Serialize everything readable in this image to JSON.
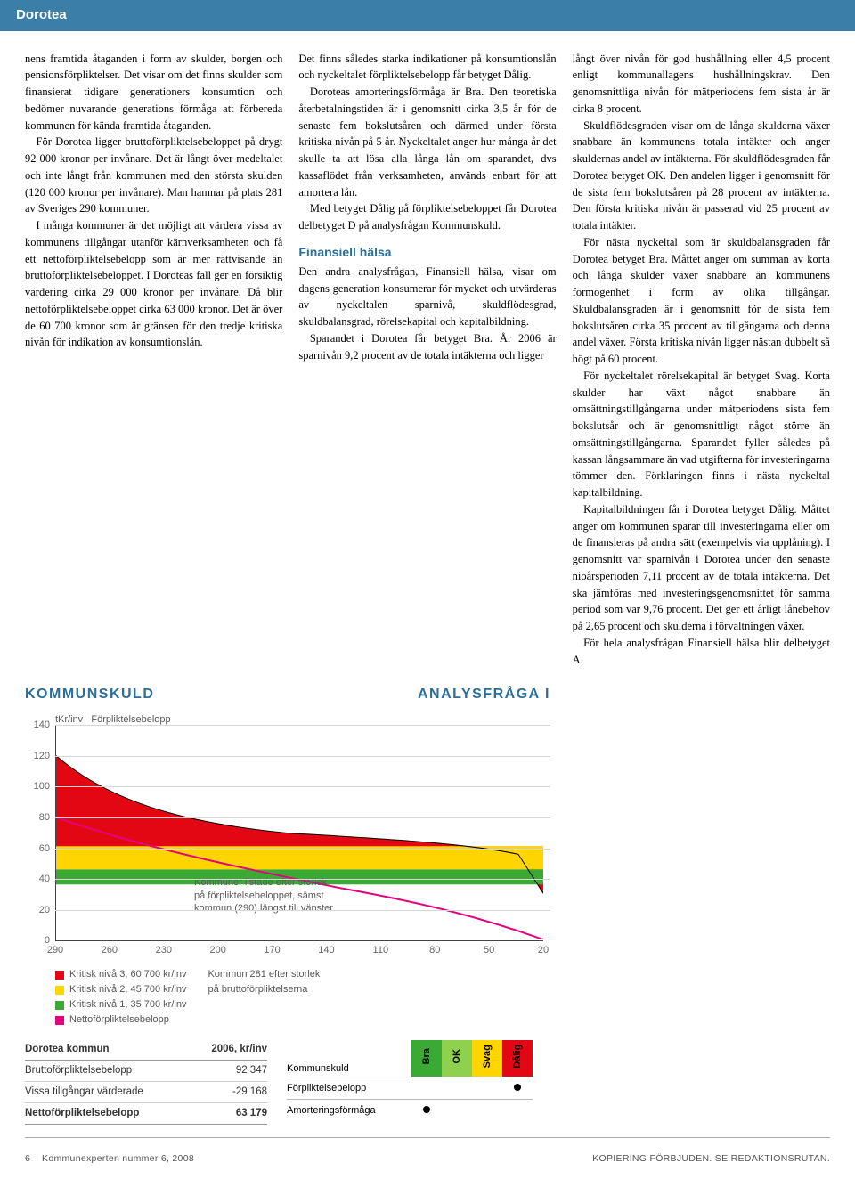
{
  "header": {
    "title": "Dorotea"
  },
  "col1": {
    "p1": "nens framtida åtaganden i form av skulder, borgen och pensionsförpliktelser. Det visar om det finns skulder som finansierat tidigare generationers konsumtion och bedömer nuvarande generations förmåga att förbereda kommunen för kända framtida åtaganden.",
    "p2": "För Dorotea ligger bruttoförpliktelsebeloppet på drygt 92 000 kronor per invånare. Det är långt över medeltalet och inte långt från kommunen med den största skulden (120 000 kronor per invånare). Man hamnar på plats 281 av Sveriges 290 kommuner.",
    "p3": "I många kommuner är det möjligt att värdera vissa av kommunens tillgångar utanför kärnverksamheten och få ett nettoförpliktelsebelopp som är mer rättvisande än bruttoförpliktelsebeloppet. I Doroteas fall ger en försiktig värdering cirka 29 000 kronor per invånare. Då blir nettoförpliktelsebeloppet cirka 63 000 kronor. Det är över de 60 700 kronor som är gränsen för den tredje kritiska nivån för indikation av konsumtionslån."
  },
  "col2": {
    "p1": "Det finns således starka indikationer på konsumtionslån och nyckeltalet förpliktelsebelopp får betyget Dålig.",
    "p2": "Doroteas amorteringsförmåga är Bra. Den teoretiska återbetalningstiden är i genomsnitt cirka 3,5 år för de senaste fem bokslutsåren och därmed under första kritiska nivån på 5 år. Nyckeltalet anger hur många år det skulle ta att lösa alla långa lån om sparandet, dvs kassaflödet från verksamheten, används enbart för att amortera lån.",
    "p3": "Med betyget Dålig på förpliktelsebeloppet får Dorotea delbetyget D på analysfrågan Kommunskuld.",
    "h": "Finansiell hälsa",
    "p4": "Den andra analysfrågan, Finansiell hälsa, visar om dagens generation konsumerar för mycket och utvärderas av nyckeltalen sparnivå, skuldflödesgrad, skuldbalansgrad, rörelsekapital och kapitalbildning.",
    "p5": "Sparandet i Dorotea får betyget Bra. År 2006 är sparnivån 9,2 procent av de totala intäkterna och ligger"
  },
  "col3": {
    "p1": "långt över nivån för god hushållning eller 4,5 procent enligt kommunallagens hushållningskrav. Den genomsnittliga nivån för mätperiodens fem sista år är cirka 8 procent.",
    "p2": "Skuldflödesgraden visar om de långa skulderna växer snabbare än kommunens totala intäkter och anger skuldernas andel av intäkterna. För skuldflödesgraden får Dorotea betyget OK. Den andelen ligger i genomsnitt för de sista fem bokslutsåren på 28 procent av intäkterna. Den första kritiska nivån är passerad vid 25 procent av totala intäkter.",
    "p3": "För nästa nyckeltal som är skuldbalansgraden får Dorotea betyget Bra. Måttet anger om summan av korta och långa skulder växer snabbare än kommunens förmögenhet i form av olika tillgångar. Skuldbalansgraden är i genomsnitt för de sista fem bokslutsåren cirka 35 procent av tillgångarna och denna andel växer. Första kritiska nivån ligger nästan dubbelt så högt på 60 procent.",
    "p4": "För nyckeltalet rörelsekapital är betyget Svag. Korta skulder har växt något snabbare än omsättningstillgångarna under mätperiodens sista fem bokslutsår och är genomsnittligt något större än omsättningstillgångarna. Sparandet fyller således på kassan långsammare än vad utgifterna för investeringarna tömmer den. Förklaringen finns i nästa nyckeltal kapitalbildning.",
    "p5": "Kapitalbildningen får i Dorotea betyget Dålig. Måttet anger om kommunen sparar till investeringarna eller om de finansieras på andra sätt (exempelvis via upplåning). I genomsnitt var sparnivån i Dorotea under den senaste nioårsperioden 7,11 procent av de totala intäkterna. Det ska jämföras med investeringsgenomsnittet för samma period som var 9,76 procent. Det ger ett årligt lånebehov på 2,65 procent och skulderna i förvaltningen växer.",
    "p6": "För hela analysfrågan Finansiell hälsa blir delbetyget A."
  },
  "chart": {
    "title_left": "KOMMUNSKULD",
    "title_right": "ANALYSFRÅGA I",
    "ylabel_unit": "tKr/inv",
    "ylabel_series": "Förpliktelsebelopp",
    "ylim": [
      0,
      140
    ],
    "yticks": [
      0,
      20,
      40,
      60,
      80,
      100,
      120,
      140
    ],
    "xticks": [
      290,
      260,
      230,
      200,
      170,
      140,
      110,
      80,
      50,
      20
    ],
    "annot1": "Kommuner listade efter storlek\npå förpliktelsebeloppet, sämst\nkommun (290) längst till vänster",
    "annot2": "Kommun 281 efter storlek\npå bruttoförpliktelserna",
    "colors": {
      "red": "#e30613",
      "yellow": "#ffd500",
      "green": "#3aaa35",
      "magenta": "#e6007e",
      "grid": "#d7d7d7",
      "axis": "#444444"
    },
    "legend": {
      "l1": "Kritisk nivå 3, 60 700 kr/inv",
      "l2": "Kritisk nivå 2, 45 700 kr/inv",
      "l3": "Kritisk nivå 1, 35 700 kr/inv",
      "l4": "Nettoförpliktelsebelopp"
    }
  },
  "table1": {
    "hdr_left": "Dorotea kommun",
    "hdr_right": "2006, kr/inv",
    "r1_l": "Bruttoförpliktelsebelopp",
    "r1_r": "92 347",
    "r2_l": "Vissa tillgångar värderade",
    "r2_r": "-29 168",
    "r3_l": "Nettoförpliktelsebelopp",
    "r3_r": "63 179"
  },
  "rating": {
    "h": "Kommunskuld",
    "r1": "Förpliktelsebelopp",
    "r2": "Amorteringsförmåga",
    "c1": "Bra",
    "c2": "OK",
    "c3": "Svag",
    "c4": "Dålig",
    "colors": {
      "bra": "#3aaa35",
      "ok": "#8fd14f",
      "svag": "#ffd500",
      "dalig": "#e30613"
    }
  },
  "footer": {
    "left_num": "6",
    "left_text": "Kommunexperten nummer 6, 2008",
    "right": "KOPIERING FÖRBJUDEN. SE REDAKTIONSRUTAN."
  }
}
